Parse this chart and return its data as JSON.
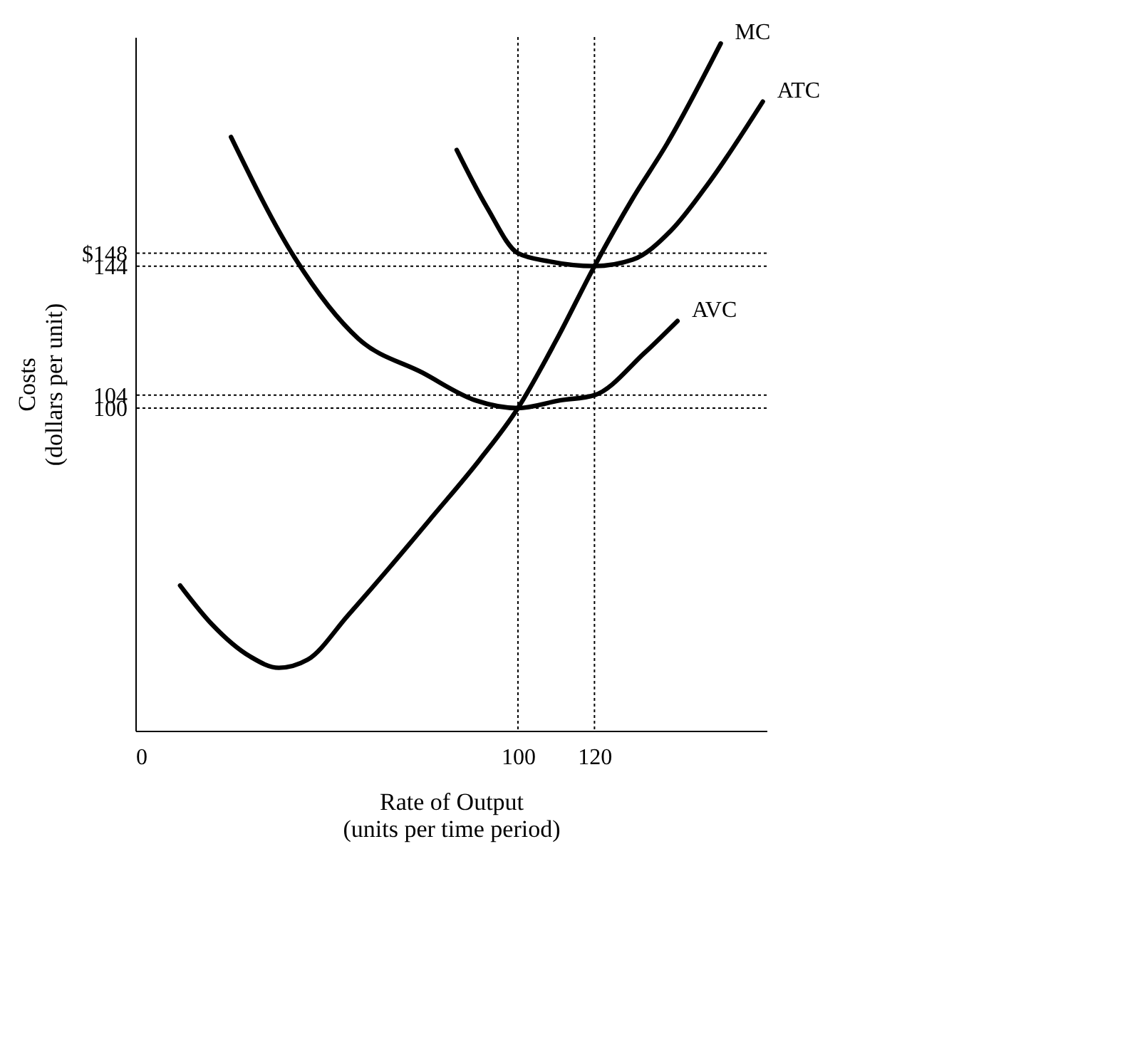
{
  "chart_data": {
    "type": "line",
    "xlabel": "Rate of Output\n(units per time period)",
    "ylabel": "Costs\n(dollars per unit)",
    "xlim": [
      0,
      165
    ],
    "ylim": [
      0,
      215
    ],
    "xticks": [
      0,
      100,
      120
    ],
    "yticks": [
      100,
      104,
      144,
      {
        "value": 148,
        "label": "$148"
      }
    ],
    "grid": false,
    "marker": "none",
    "line_style": "solid",
    "series": [
      {
        "name": "MC",
        "color": "#000000",
        "x": [
          11.7,
          20,
          30,
          37.5,
          45,
          55.6,
          66,
          77.8,
          90,
          100,
          110,
          120,
          130,
          139,
          153
        ],
        "values": [
          45,
          33,
          23,
          19.5,
          22,
          35.8,
          50,
          66.6,
          84,
          100,
          121,
          144,
          165,
          182,
          213
        ]
      },
      {
        "name": "ATC",
        "color": "#000000",
        "x": [
          84,
          92,
          100,
          108,
          120,
          130,
          140,
          150,
          164
        ],
        "values": [
          180,
          162,
          148,
          145.5,
          144,
          146,
          155,
          170,
          195
        ]
      },
      {
        "name": "AVC",
        "color": "#000000",
        "x": [
          25,
          41.7,
          58.3,
          75,
          88.9,
          100,
          111,
          120,
          133,
          141.7
        ],
        "values": [
          184,
          146.5,
          121.5,
          111,
          102.4,
          100,
          102.4,
          104,
          117,
          127
        ]
      }
    ],
    "ref_lines": [
      {
        "axis": "y",
        "value": 148,
        "line_style": "dotted"
      },
      {
        "axis": "y",
        "value": 144,
        "line_style": "dotted"
      },
      {
        "axis": "y",
        "value": 104,
        "line_style": "dotted"
      },
      {
        "axis": "y",
        "value": 100,
        "line_style": "dotted"
      },
      {
        "axis": "x",
        "value": 100,
        "line_style": "dotted"
      },
      {
        "axis": "x",
        "value": 120,
        "line_style": "dotted"
      }
    ]
  }
}
